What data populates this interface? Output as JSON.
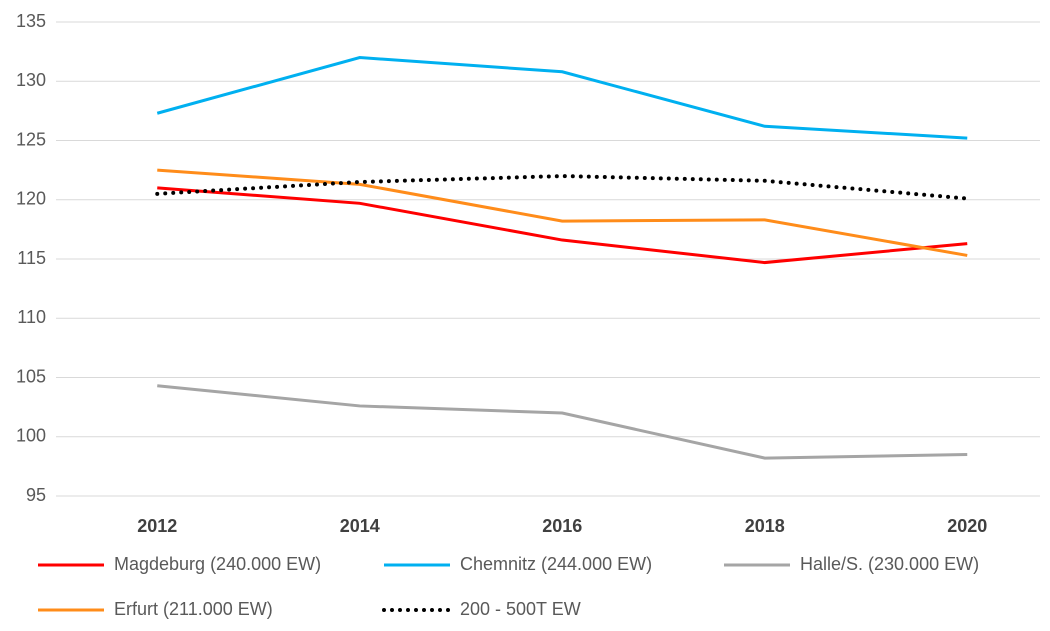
{
  "chart_data": {
    "type": "line",
    "categories": [
      "2012",
      "2014",
      "2016",
      "2018",
      "2020"
    ],
    "ylim": [
      95,
      135
    ],
    "yticks": [
      95,
      100,
      105,
      110,
      115,
      120,
      125,
      130,
      135
    ],
    "grid": true,
    "series": [
      {
        "name": "Magdeburg (240.000 EW)",
        "color": "#ff0000",
        "values": [
          121,
          119.7,
          116.6,
          114.7,
          116.3
        ]
      },
      {
        "name": "Chemnitz (244.000 EW)",
        "color": "#00b0f0",
        "values": [
          127.3,
          132,
          130.8,
          126.2,
          125.2
        ]
      },
      {
        "name": "Halle/S. (230.000 EW)",
        "color": "#a5a5a5",
        "values": [
          104.3,
          102.6,
          102,
          98.2,
          98.5
        ]
      },
      {
        "name": "Erfurt (211.000 EW)",
        "color": "#ff8c1a",
        "values": [
          122.5,
          121.3,
          118.2,
          118.3,
          115.3
        ]
      },
      {
        "name": "200 - 500T EW",
        "color": "#000000",
        "dashed": true,
        "values": [
          120.5,
          121.5,
          122,
          121.6,
          120.1
        ]
      }
    ]
  }
}
